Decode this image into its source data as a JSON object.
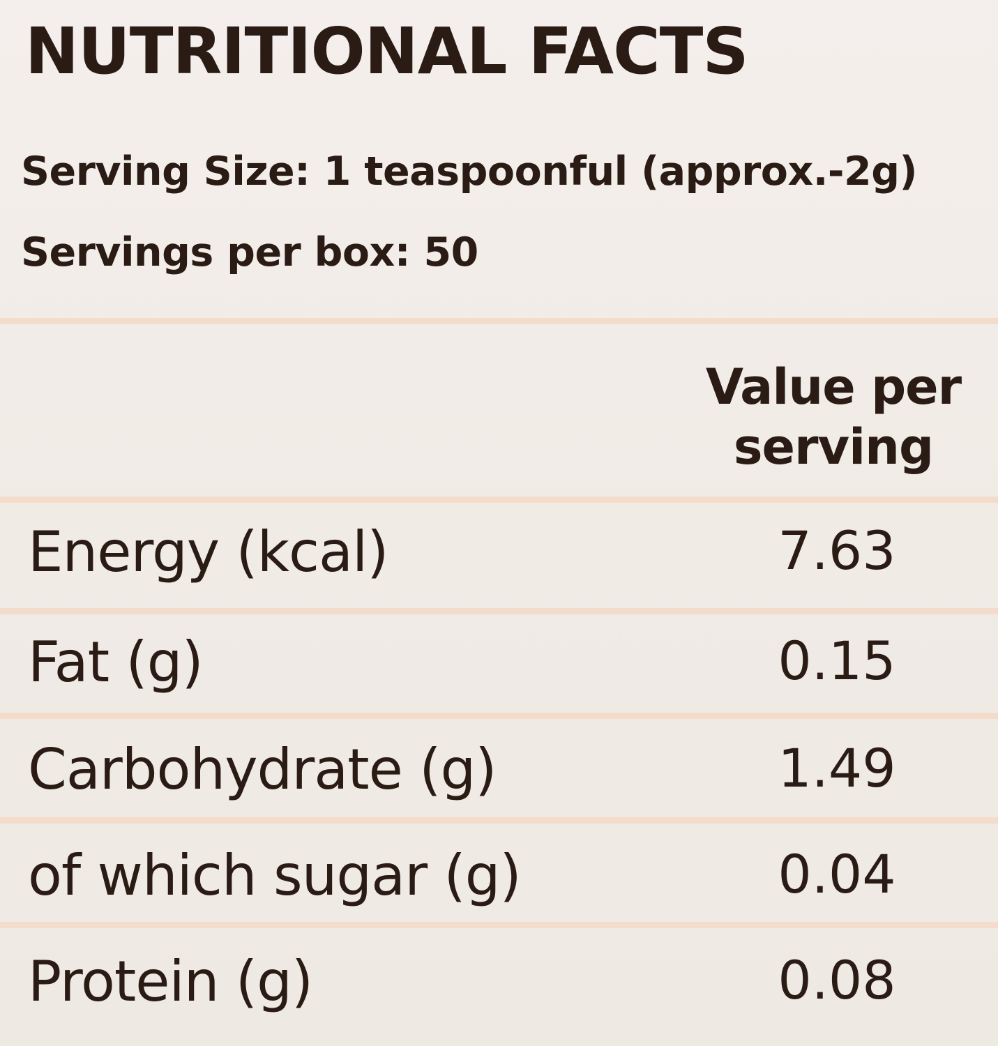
{
  "title": "NUTRITIONAL FACTS",
  "serving_size": "Serving Size: 1 teaspoonful (approx.-2g)",
  "servings_per_box": "Servings per box: 50",
  "column_header": {
    "line1": "Value per",
    "line2": "serving"
  },
  "rows": [
    {
      "label": "Energy (kcal)",
      "value": "7.63"
    },
    {
      "label": "Fat (g)",
      "value": "0.15"
    },
    {
      "label": "Carbohydrate (g)",
      "value": "1.49"
    },
    {
      "label": "of which sugar (g)",
      "value": "0.04"
    },
    {
      "label": "Protein (g)",
      "value": "0.08"
    }
  ]
}
